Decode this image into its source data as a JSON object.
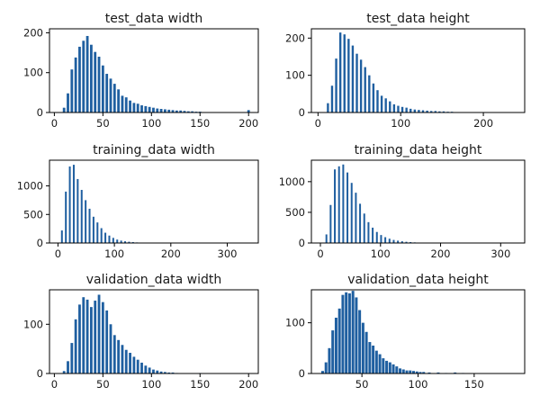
{
  "chart_data": [
    {
      "type": "bar",
      "title": "test_data width",
      "xlabel": "",
      "ylabel": "",
      "color": "#1f5fa0",
      "xlim": [
        -5,
        210
      ],
      "ylim": [
        0,
        210
      ],
      "xticks": [
        0,
        50,
        100,
        150,
        200
      ],
      "yticks": [
        0,
        100,
        200
      ],
      "bin_width": 4.1,
      "bar_width": 2.6,
      "x": [
        10,
        14,
        18,
        22,
        26,
        30,
        34,
        38,
        42,
        46,
        50,
        54,
        58,
        62,
        66,
        70,
        74,
        78,
        82,
        86,
        90,
        94,
        98,
        102,
        106,
        110,
        114,
        118,
        122,
        126,
        130,
        134,
        138,
        142,
        146,
        150,
        154,
        200
      ],
      "values": [
        12,
        48,
        108,
        138,
        165,
        180,
        192,
        170,
        152,
        140,
        118,
        97,
        85,
        72,
        58,
        42,
        38,
        30,
        24,
        22,
        18,
        16,
        14,
        12,
        10,
        9,
        8,
        7,
        6,
        5,
        5,
        4,
        3,
        3,
        2,
        2,
        1,
        6
      ]
    },
    {
      "type": "bar",
      "title": "test_data height",
      "xlabel": "",
      "ylabel": "",
      "color": "#1f5fa0",
      "xlim": [
        -8,
        250
      ],
      "ylim": [
        0,
        225
      ],
      "xticks": [
        0,
        100,
        200
      ],
      "yticks": [
        0,
        100,
        200
      ],
      "bin_width": 4.9,
      "bar_width": 2.6,
      "x": [
        12,
        17,
        22,
        27,
        32,
        37,
        42,
        47,
        52,
        57,
        62,
        67,
        72,
        77,
        82,
        87,
        92,
        97,
        102,
        107,
        112,
        117,
        122,
        127,
        132,
        137,
        142,
        147,
        152,
        157,
        162,
        167,
        172
      ],
      "values": [
        25,
        72,
        145,
        215,
        210,
        198,
        180,
        158,
        142,
        122,
        100,
        78,
        60,
        45,
        38,
        30,
        22,
        18,
        15,
        13,
        10,
        8,
        7,
        6,
        5,
        4,
        4,
        3,
        3,
        2,
        2,
        1,
        1
      ]
    },
    {
      "type": "bar",
      "title": "training_data width",
      "xlabel": "",
      "ylabel": "",
      "color": "#1f5fa0",
      "xlim": [
        -15,
        355
      ],
      "ylim": [
        0,
        1450
      ],
      "xticks": [
        0,
        100,
        200,
        300
      ],
      "yticks": [
        0,
        500,
        1000
      ],
      "bin_width": 7.0,
      "bar_width": 3.2,
      "x": [
        7,
        14,
        21,
        28,
        35,
        42,
        49,
        56,
        63,
        70,
        77,
        84,
        91,
        98,
        105,
        112,
        119,
        126,
        133,
        140,
        147,
        154
      ],
      "values": [
        220,
        900,
        1340,
        1370,
        1120,
        930,
        750,
        600,
        460,
        360,
        260,
        180,
        130,
        90,
        60,
        42,
        30,
        22,
        16,
        10,
        6,
        3
      ]
    },
    {
      "type": "bar",
      "title": "training_data height",
      "xlabel": "",
      "ylabel": "",
      "color": "#1f5fa0",
      "xlim": [
        -15,
        340
      ],
      "ylim": [
        0,
        1350
      ],
      "xticks": [
        0,
        100,
        200,
        300
      ],
      "yticks": [
        0,
        500,
        1000
      ],
      "bin_width": 7.0,
      "bar_width": 3.0,
      "x": [
        10,
        17,
        24,
        31,
        38,
        45,
        52,
        59,
        66,
        73,
        80,
        87,
        94,
        101,
        108,
        115,
        122,
        129,
        136,
        143,
        150,
        157,
        164,
        171,
        178
      ],
      "values": [
        140,
        620,
        1200,
        1250,
        1280,
        1150,
        980,
        820,
        640,
        480,
        340,
        250,
        180,
        130,
        95,
        70,
        50,
        38,
        28,
        20,
        15,
        10,
        7,
        5,
        3
      ]
    },
    {
      "type": "bar",
      "title": "validation_data width",
      "xlabel": "",
      "ylabel": "",
      "color": "#1f5fa0",
      "xlim": [
        -5,
        210
      ],
      "ylim": [
        0,
        170
      ],
      "xticks": [
        0,
        50,
        100,
        150,
        200
      ],
      "yticks": [
        0,
        100
      ],
      "bin_width": 4.1,
      "bar_width": 2.6,
      "x": [
        10,
        14,
        18,
        22,
        26,
        30,
        34,
        38,
        42,
        46,
        50,
        54,
        58,
        62,
        66,
        70,
        74,
        78,
        82,
        86,
        90,
        94,
        98,
        102,
        106,
        110,
        114,
        118,
        122,
        126,
        150
      ],
      "values": [
        5,
        25,
        62,
        110,
        140,
        155,
        150,
        135,
        148,
        160,
        145,
        128,
        100,
        78,
        68,
        58,
        48,
        42,
        34,
        28,
        22,
        16,
        12,
        8,
        6,
        4,
        3,
        2,
        2,
        1,
        1
      ]
    },
    {
      "type": "bar",
      "title": "validation_data height",
      "xlabel": "",
      "ylabel": "",
      "color": "#1f5fa0",
      "xlim": [
        5,
        195
      ],
      "ylim": [
        0,
        165
      ],
      "xticks": [
        50,
        100,
        150
      ],
      "yticks": [
        0,
        100
      ],
      "bin_width": 3.4,
      "bar_width": 2.4,
      "x": [
        15,
        18,
        21,
        24,
        27,
        30,
        33,
        36,
        39,
        42,
        45,
        48,
        51,
        54,
        57,
        60,
        63,
        66,
        69,
        72,
        75,
        78,
        81,
        84,
        87,
        90,
        93,
        96,
        99,
        102,
        105,
        110,
        118,
        125,
        133,
        140
      ],
      "values": [
        5,
        22,
        50,
        85,
        110,
        128,
        155,
        160,
        158,
        163,
        150,
        125,
        100,
        82,
        62,
        55,
        45,
        38,
        30,
        25,
        22,
        18,
        14,
        10,
        8,
        6,
        6,
        5,
        4,
        3,
        3,
        2,
        2,
        1,
        2,
        1
      ]
    }
  ]
}
